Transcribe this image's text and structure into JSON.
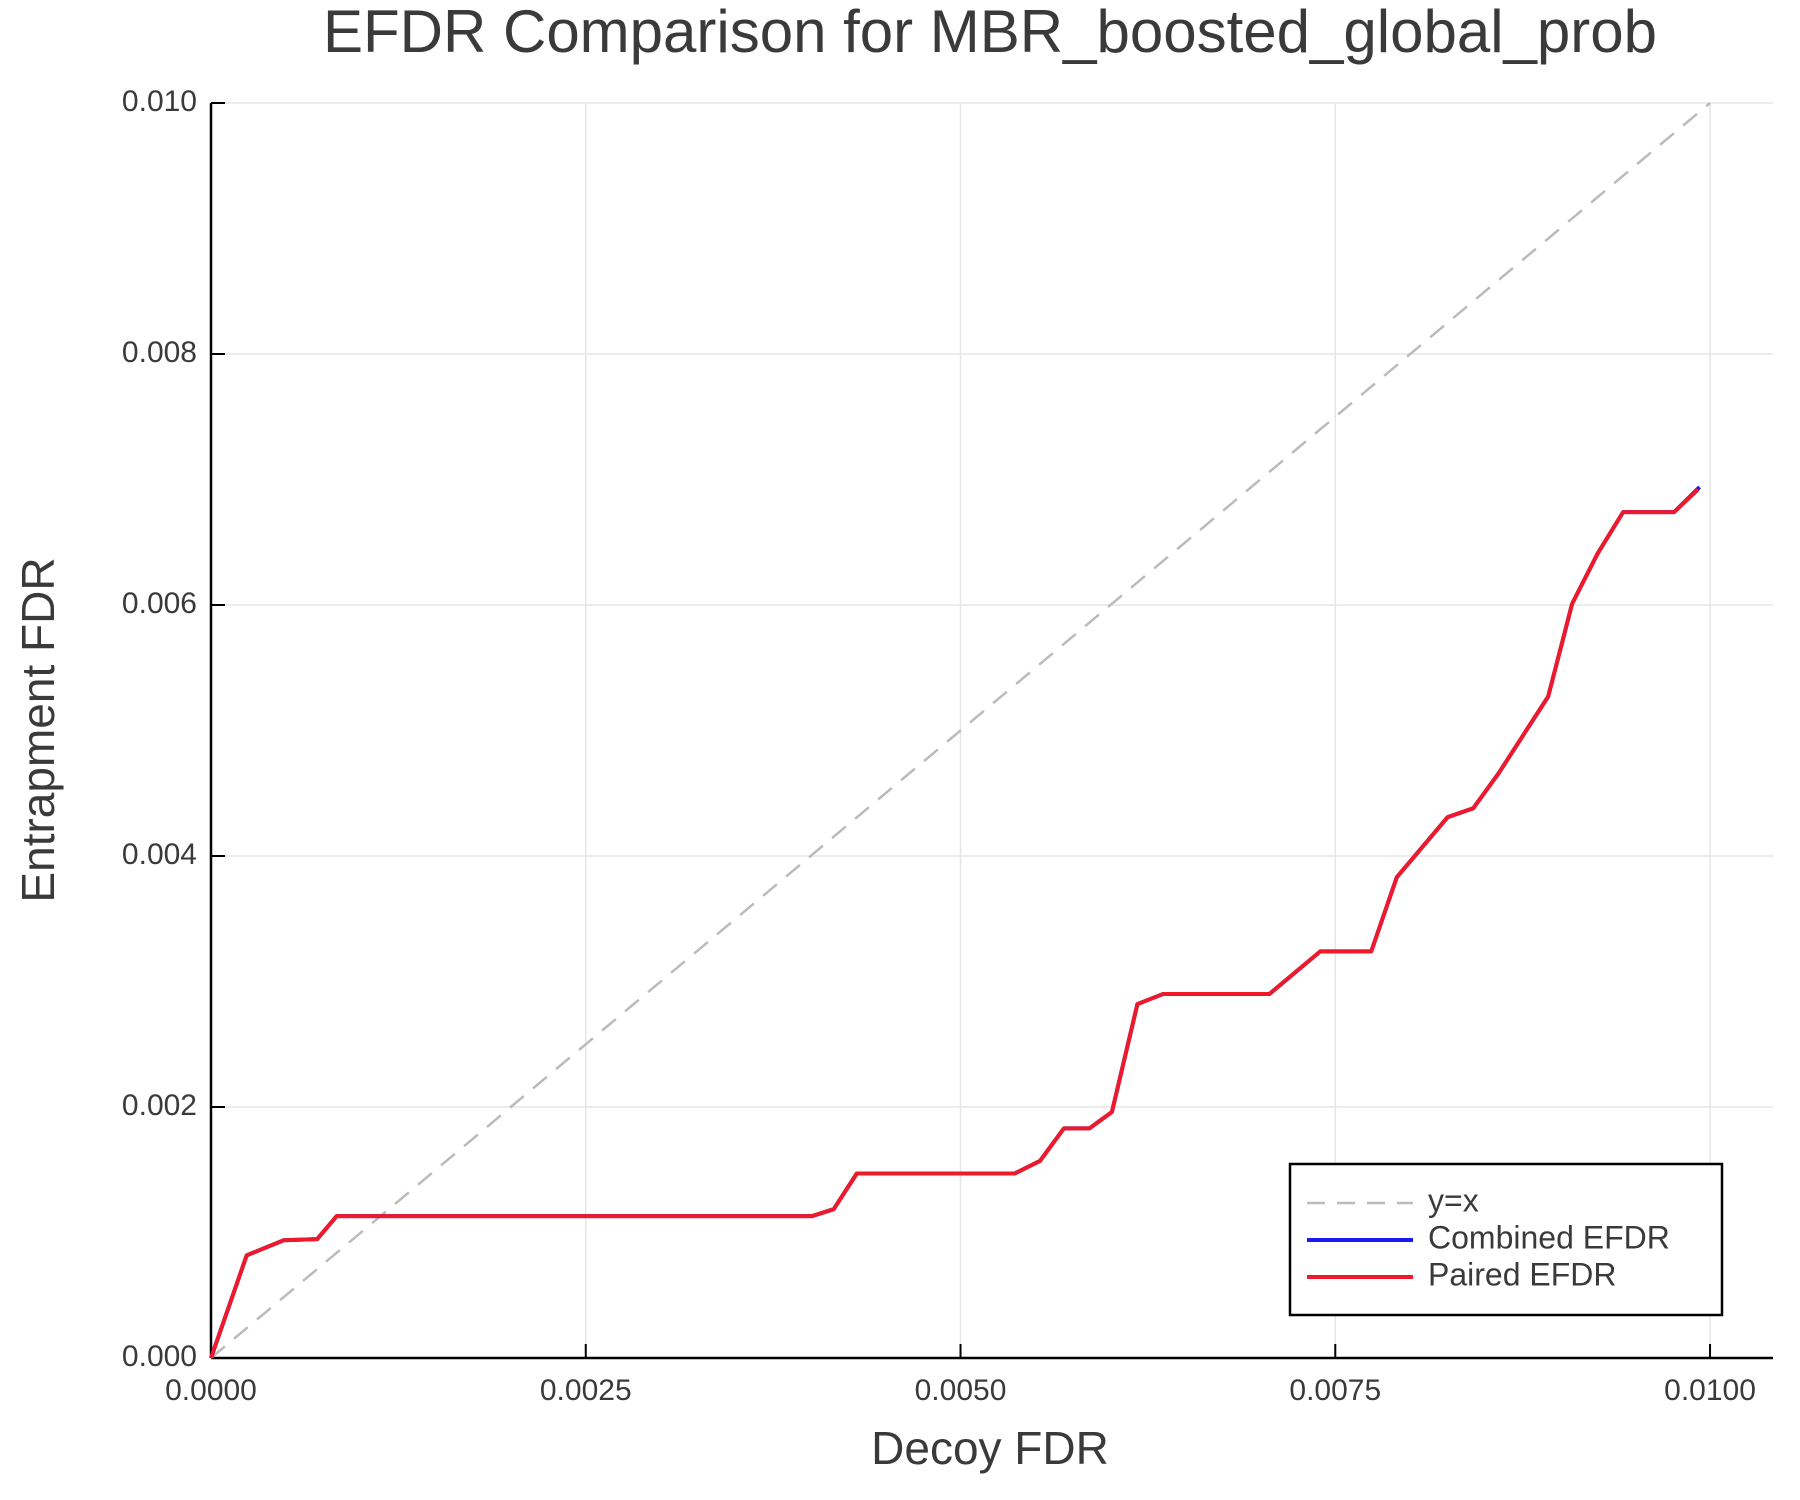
{
  "chart_data": {
    "type": "line",
    "title": "EFDR Comparison for MBR_boosted_global_prob",
    "x_label": "Decoy FDR",
    "y_label": "Entrapment FDR",
    "xlim": [
      0,
      0.01042
    ],
    "ylim": [
      0,
      0.01
    ],
    "xticks": [
      {
        "value": 0,
        "label": "0.0000"
      },
      {
        "value": 0.0025,
        "label": "0.0025"
      },
      {
        "value": 0.005,
        "label": "0.0050"
      },
      {
        "value": 0.0075,
        "label": "0.0075"
      },
      {
        "value": 0.01,
        "label": "0.0100"
      }
    ],
    "yticks": [
      {
        "value": 0,
        "label": "0.000"
      },
      {
        "value": 0.002,
        "label": "0.002"
      },
      {
        "value": 0.004,
        "label": "0.004"
      },
      {
        "value": 0.006,
        "label": "0.006"
      },
      {
        "value": 0.008,
        "label": "0.008"
      },
      {
        "value": 0.01,
        "label": "0.010"
      }
    ],
    "grid": true,
    "legend": "lower right",
    "series": [
      {
        "name": "y=x",
        "color": "#bbbbbb",
        "dashed": true,
        "x": [
          0,
          0.01
        ],
        "values": [
          0,
          0.01
        ]
      },
      {
        "name": "Combined EFDR",
        "color": "#1a1aee",
        "x": [
          0,
          0.000238,
          0.000485,
          0.000708,
          0.000838,
          0.004008,
          0.004154,
          0.004308,
          0.005362,
          0.00553,
          0.00569,
          0.00586,
          0.00601,
          0.00618,
          0.00635,
          0.00706,
          0.0074,
          0.00774,
          0.00791,
          0.00825,
          0.00842,
          0.00859,
          0.00892,
          0.00908,
          0.00925,
          0.00942,
          0.00976,
          0.00993
        ],
        "values": [
          0,
          0.000818,
          0.000938,
          0.000947,
          0.00113,
          0.00113,
          0.001186,
          0.00147,
          0.00147,
          0.00157,
          0.00183,
          0.00183,
          0.00196,
          0.00282,
          0.0029,
          0.0029,
          0.00324,
          0.00324,
          0.00383,
          0.00431,
          0.00438,
          0.00466,
          0.00527,
          0.00601,
          0.00641,
          0.00674,
          0.00674,
          0.00694
        ]
      },
      {
        "name": "Paired EFDR",
        "color": "#ee1a2a",
        "x": [
          0,
          0.000238,
          0.000485,
          0.000708,
          0.000838,
          0.004008,
          0.004154,
          0.004308,
          0.005362,
          0.00553,
          0.00569,
          0.00586,
          0.00601,
          0.00618,
          0.00635,
          0.00706,
          0.0074,
          0.00774,
          0.00791,
          0.00825,
          0.00842,
          0.00859,
          0.00892,
          0.00908,
          0.00925,
          0.00942,
          0.00976,
          0.00992
        ],
        "values": [
          0,
          0.000818,
          0.000938,
          0.000947,
          0.00113,
          0.00113,
          0.001186,
          0.00147,
          0.00147,
          0.00157,
          0.00183,
          0.00183,
          0.00196,
          0.00282,
          0.0029,
          0.0029,
          0.00324,
          0.00324,
          0.00383,
          0.00431,
          0.00438,
          0.00466,
          0.00527,
          0.00601,
          0.00641,
          0.00674,
          0.00674,
          0.00692
        ]
      }
    ]
  }
}
